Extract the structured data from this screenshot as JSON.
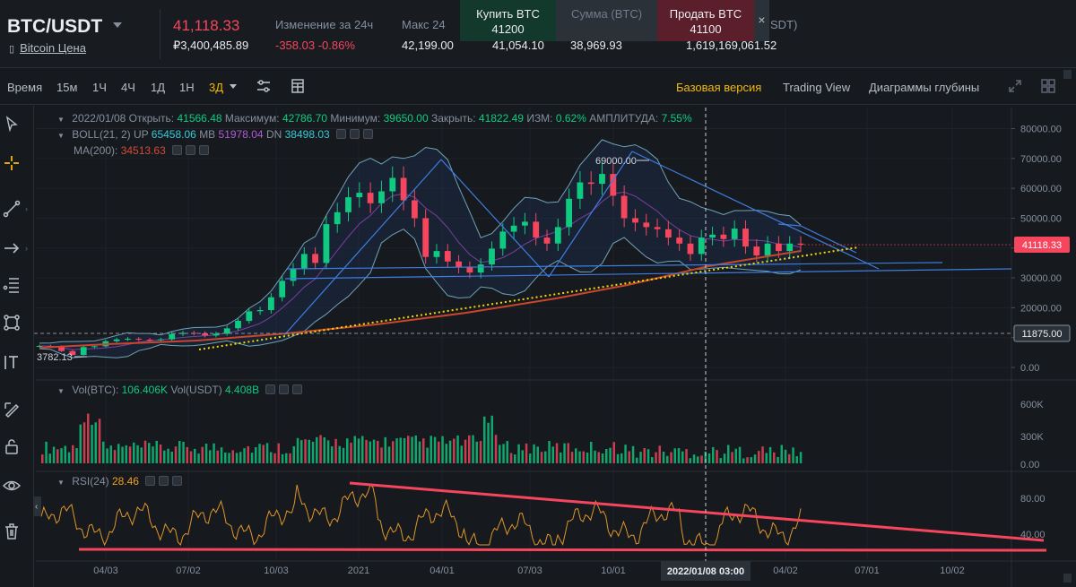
{
  "ticker": {
    "pair": "BTC/USDT",
    "pair_link": "Bitcoin Цена",
    "last_price": "41,118.33",
    "last_price_fiat": "₽3,400,485.89",
    "change_label": "Изменение за 24ч",
    "change_value": "-358.03 -0.86%",
    "high_label": "Макс 24",
    "high_value": "42,199.00",
    "low_value": "41,054.10",
    "vol_btc_value": "38,969.93",
    "vol_usdt_label_tail": "SDT)",
    "vol_usdt_value": "1,619,169,061.52"
  },
  "order_panel": {
    "buy_label": "Купить BTC",
    "buy_price": "41200",
    "amount_label": "Сумма (BTC)",
    "sell_label": "Продать BTC",
    "sell_price": "41100",
    "close_glyph": "×"
  },
  "toolbar": {
    "time_label": "Время",
    "intervals": [
      "15м",
      "1Ч",
      "4Ч",
      "1Д",
      "1Н",
      "3Д"
    ],
    "active_interval": "3Д",
    "views": [
      "Базовая версия",
      "Trading View",
      "Диаграммы глубины"
    ],
    "active_view": "Базовая версия"
  },
  "legend": {
    "date": "2022/01/08",
    "open_label": "Открыть:",
    "open": "41566.48",
    "high_label": "Максимум:",
    "high": "42786.70",
    "low_label": "Минимум:",
    "low": "39650.00",
    "close_label": "Закрыть:",
    "close": "41822.49",
    "chg_label": "ИЗМ:",
    "chg": "0.62%",
    "amp_label": "АМПЛИТУДА:",
    "amp": "7.55%",
    "boll_label": "BOLL(21, 2)",
    "up_label": "UP",
    "up": "65458.06",
    "mb_label": "MB",
    "mb": "51978.04",
    "dn_label": "DN",
    "dn": "38498.03",
    "ma_label": "MA(200):",
    "ma": "34513.63",
    "vol_btc_label": "Vol(BTC):",
    "vol_btc": "106.406K",
    "vol_usdt_label": "Vol(USDT)",
    "vol_usdt": "4.408B",
    "rsi_label": "RSI(24)",
    "rsi": "28.46"
  },
  "chart_data": {
    "type": "candlestick",
    "price_axis": {
      "ticks": [
        "80000.00",
        "70000.00",
        "60000.00",
        "50000.00",
        "40000.00",
        "30000.00",
        "20000.00",
        "10000.00",
        "0.00"
      ],
      "ylim": [
        0,
        80000
      ]
    },
    "volume_axis": {
      "ticks": [
        "600K",
        "300K",
        "0.00"
      ]
    },
    "rsi_axis": {
      "ticks": [
        "80.00",
        "40.00"
      ]
    },
    "x_ticks": [
      "04/03",
      "07/02",
      "10/03",
      "2021",
      "04/01",
      "07/03",
      "10/01",
      "04/02",
      "07/01",
      "10/02"
    ],
    "current_price_label": "41118.33",
    "crosshair_price_label": "11875.00",
    "crosshair_time_label": "2022/01/08 03:00",
    "annotation_high": "69000.00",
    "annotation_low": "3782.13",
    "close_series": [
      7200,
      7000,
      5500,
      4200,
      6800,
      7100,
      8800,
      9400,
      9600,
      9300,
      9200,
      9400,
      11200,
      11600,
      11400,
      10700,
      11300,
      13100,
      15600,
      18800,
      19200,
      23500,
      29000,
      33000,
      38000,
      35000,
      48000,
      52000,
      57000,
      58500,
      55000,
      59000,
      63500,
      56000,
      50000,
      37000,
      39000,
      35500,
      33500,
      31800,
      34500,
      39800,
      45500,
      47500,
      48800,
      43500,
      41500,
      47000,
      56500,
      62000,
      61500,
      64800,
      57500,
      50000,
      48500,
      47000,
      46300,
      43500,
      41500,
      38000,
      43500,
      44500,
      43000,
      46500,
      40500,
      37500,
      41500,
      39000,
      41500,
      41118
    ]
  }
}
